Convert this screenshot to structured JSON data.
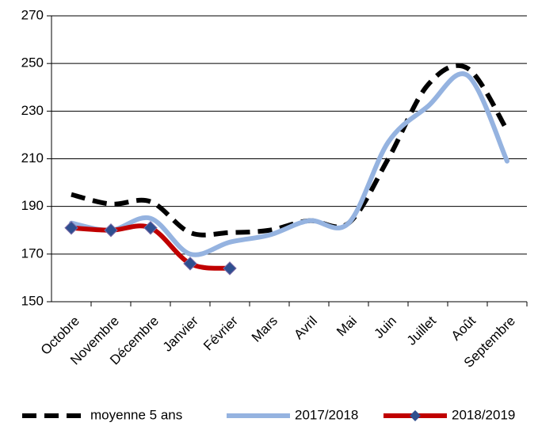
{
  "chart_data": {
    "type": "line",
    "categories": [
      "Octobre",
      "Novembre",
      "Décembre",
      "Janvier",
      "Février",
      "Mars",
      "Avril",
      "Mai",
      "Juin",
      "Juillet",
      "Août",
      "Septembre"
    ],
    "series": [
      {
        "name": "moyenne 5 ans",
        "color": "#000000",
        "dash": true,
        "values": [
          195,
          191,
          192,
          179,
          179,
          180,
          184,
          183,
          210,
          241,
          248,
          222
        ]
      },
      {
        "name": "2017/2018",
        "color": "#95b3e0",
        "values": [
          183,
          180,
          185,
          170,
          175,
          178,
          184,
          183,
          217,
          232,
          245,
          209
        ]
      },
      {
        "name": "2018/2019",
        "color": "#c00000",
        "marker": "diamond",
        "marker_color": "#2f4f8f",
        "values": [
          181,
          180,
          181,
          166,
          164,
          null,
          null,
          null,
          null,
          null,
          null,
          null
        ]
      }
    ],
    "ylim": [
      150,
      270
    ],
    "yticks": [
      150,
      170,
      190,
      210,
      230,
      250,
      270
    ],
    "grid": true,
    "smooth": true,
    "legend": "bottom"
  }
}
